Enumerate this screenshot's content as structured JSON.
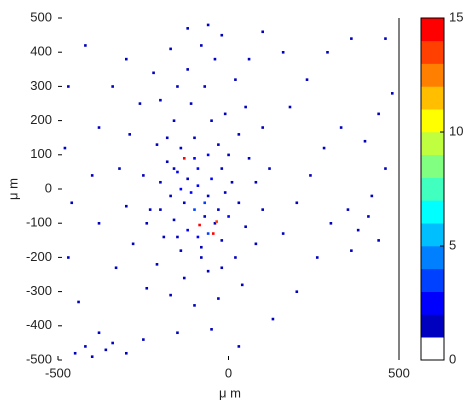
{
  "chart_data": {
    "type": "scatter",
    "xlabel": "μ m",
    "ylabel": "μ m",
    "xlim": [
      -500,
      500
    ],
    "xticks": [
      -500,
      0,
      500
    ],
    "ylim": [
      -500,
      500
    ],
    "yticks": [
      -500,
      -400,
      -300,
      -200,
      -100,
      0,
      100,
      200,
      300,
      400,
      500
    ],
    "clim": [
      0,
      15
    ],
    "cticks": [
      0,
      5,
      10,
      15
    ],
    "colormap": [
      "#ffffff",
      "#0000bf",
      "#0000ff",
      "#0040ff",
      "#0080ff",
      "#00bfff",
      "#00ffff",
      "#40ffbf",
      "#80ff80",
      "#bfff40",
      "#ffff00",
      "#ffbf00",
      "#ff8000",
      "#ff4000",
      "#ff0000"
    ],
    "x": [
      -150,
      -120,
      -90,
      -60,
      -130,
      -100,
      -70,
      -40,
      -160,
      -200,
      -180,
      -140,
      -100,
      -60,
      -20,
      10,
      30,
      0,
      -20,
      -80,
      -140,
      -190,
      -230,
      -250,
      -210,
      -160,
      -110,
      -70,
      -120,
      -80,
      -40,
      -150,
      -200,
      -10,
      30,
      60,
      80,
      50,
      20,
      -60,
      -130,
      -210,
      -280,
      -300,
      -320,
      -290,
      -260,
      -220,
      -170,
      -120,
      -60,
      -20,
      20,
      50,
      100,
      120,
      100,
      80,
      40,
      -30,
      -100,
      -170,
      -240,
      -330,
      -380,
      -400,
      -380,
      -340,
      -300,
      -420,
      -470,
      -480,
      -460,
      -470,
      -440,
      -380,
      -420,
      -360,
      -400,
      -340,
      -300,
      -450,
      -250,
      -150,
      -50,
      30,
      130,
      200,
      260,
      300,
      350,
      380,
      410,
      440,
      360,
      420,
      460,
      400,
      330,
      280,
      240,
      200,
      160,
      180,
      230,
      290,
      360,
      460,
      480,
      440,
      160,
      100,
      60,
      -90,
      -110,
      -70,
      -50,
      -140,
      -170,
      -120,
      -90,
      -60,
      -30,
      -10,
      -180,
      -50,
      -100,
      -150,
      -200,
      -240,
      0,
      -30,
      -80,
      -20,
      -160,
      -130,
      -45,
      -85,
      -35
    ],
    "y": [
      50,
      30,
      10,
      -20,
      -40,
      -60,
      -80,
      -100,
      -90,
      20,
      80,
      120,
      150,
      100,
      60,
      20,
      -40,
      -80,
      -150,
      -170,
      -180,
      -140,
      -60,
      40,
      130,
      200,
      250,
      300,
      350,
      420,
      380,
      300,
      260,
      220,
      160,
      90,
      20,
      -110,
      -200,
      -240,
      -260,
      -220,
      -160,
      -50,
      60,
      160,
      250,
      340,
      410,
      470,
      480,
      450,
      320,
      240,
      180,
      60,
      -60,
      -160,
      -280,
      -320,
      -340,
      -310,
      -290,
      -230,
      -100,
      40,
      180,
      300,
      380,
      420,
      300,
      120,
      -40,
      -200,
      -330,
      -420,
      -460,
      -470,
      -490,
      -450,
      -480,
      -480,
      -440,
      -420,
      -410,
      -460,
      -380,
      -300,
      -200,
      -100,
      -60,
      -120,
      -80,
      -150,
      -180,
      -20,
      60,
      140,
      180,
      120,
      40,
      -40,
      -130,
      240,
      320,
      400,
      440,
      440,
      280,
      220,
      400,
      460,
      380,
      60,
      -10,
      -40,
      30,
      0,
      -20,
      -120,
      -140,
      -130,
      -60,
      -10,
      150,
      200,
      90,
      -140,
      -60,
      -100,
      100,
      130,
      -200,
      -230,
      60,
      90,
      -130,
      -105,
      -95
    ],
    "counts": [
      2,
      1,
      2,
      1,
      1,
      3,
      1,
      1,
      1,
      1,
      1,
      1,
      1,
      2,
      1,
      1,
      1,
      2,
      1,
      1,
      1,
      1,
      1,
      1,
      1,
      1,
      1,
      1,
      1,
      1,
      1,
      1,
      1,
      1,
      1,
      1,
      1,
      1,
      1,
      1,
      1,
      1,
      1,
      1,
      1,
      1,
      1,
      1,
      1,
      1,
      1,
      1,
      1,
      1,
      1,
      1,
      1,
      1,
      1,
      1,
      1,
      1,
      1,
      1,
      1,
      1,
      1,
      1,
      1,
      1,
      1,
      1,
      1,
      1,
      1,
      1,
      1,
      1,
      1,
      1,
      1,
      1,
      1,
      1,
      1,
      1,
      1,
      1,
      1,
      1,
      1,
      1,
      1,
      1,
      1,
      1,
      1,
      1,
      1,
      1,
      1,
      1,
      1,
      1,
      1,
      1,
      1,
      1,
      1,
      1,
      1,
      1,
      1,
      2,
      2,
      3,
      2,
      2,
      1,
      2,
      2,
      3,
      1,
      1,
      1,
      1,
      2,
      1,
      1,
      1,
      1,
      1,
      1,
      1,
      1,
      14,
      15,
      14,
      13
    ]
  }
}
